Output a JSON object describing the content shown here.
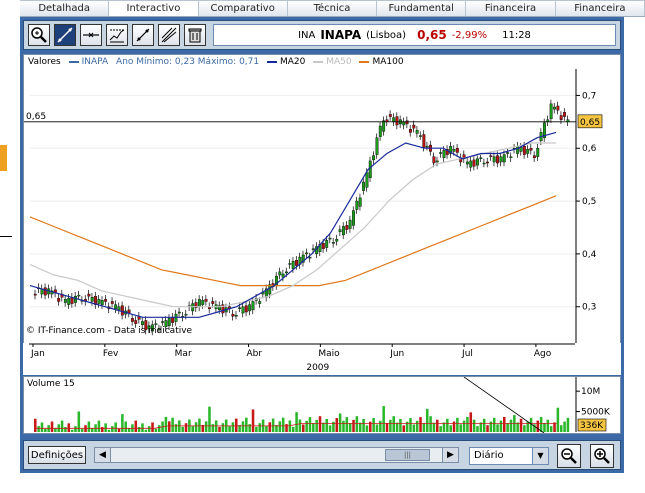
{
  "tabs": [
    "Detalhada",
    "Interactivo",
    "Comparativo",
    "Técnica",
    "Fundamental",
    "Financeira",
    "Financeira"
  ],
  "toolbar": {
    "tools": [
      "zoom-icon",
      "line-tool-icon",
      "horizontal-line-icon",
      "regression-icon",
      "trend-icon",
      "fibonacci-icon",
      "trash-icon"
    ]
  },
  "quote": {
    "exchange": "INA",
    "symbol": "INAPA",
    "market": "(Lisboa)",
    "price": "0,65",
    "change": "-2,99%",
    "time": "11:28"
  },
  "legend": {
    "valores": "Valores",
    "inapa": "INAPA",
    "range": "Ano Mínimo: 0,23 Máximo: 0,71",
    "ma20": "MA20",
    "ma50": "MA50",
    "ma100": "MA100"
  },
  "colors": {
    "ma20": "#1a2a9c",
    "ma50": "#c8c8c8",
    "ma100": "#e07818",
    "up": "#1c9b1c",
    "down": "#b81414",
    "volume_up": "#2ab82a",
    "volume_down": "#c81818",
    "highlight": "#f5c542"
  },
  "price_level_label": "0,65",
  "price_tag": "0,65",
  "copyright": "© IT-Finance.com - Data is indicative",
  "volume_label": "Volume 15",
  "volume_tag": "336K",
  "buttons": {
    "settings": "Definições",
    "period": "Diário"
  },
  "chart_data": [
    {
      "type": "candlestick",
      "title": "INAPA",
      "x_year": "2009",
      "x_ticks": [
        "Jan",
        "Fev",
        "Mar",
        "Abr",
        "Maio",
        "Jun",
        "Jul",
        "Ago"
      ],
      "y_ticks": [
        0.3,
        0.4,
        0.5,
        0.6,
        0.7
      ],
      "y_tick_labels": [
        "0,3",
        "0,4",
        "0,5",
        "0,6",
        "0,7"
      ],
      "ylim": [
        0.22,
        0.75
      ],
      "year_low": 0.23,
      "year_high": 0.71,
      "last": 0.65,
      "weekly_closes": [
        0.33,
        0.31,
        0.32,
        0.31,
        0.3,
        0.28,
        0.26,
        0.27,
        0.29,
        0.31,
        0.3,
        0.29,
        0.3,
        0.33,
        0.37,
        0.39,
        0.41,
        0.43,
        0.46,
        0.55,
        0.66,
        0.65,
        0.63,
        0.58,
        0.6,
        0.57,
        0.58,
        0.58,
        0.6,
        0.59,
        0.68,
        0.65
      ],
      "ma20": [
        0.34,
        0.33,
        0.32,
        0.31,
        0.3,
        0.29,
        0.28,
        0.28,
        0.28,
        0.28,
        0.29,
        0.3,
        0.32,
        0.34,
        0.37,
        0.4,
        0.44,
        0.5,
        0.56,
        0.59,
        0.61,
        0.6,
        0.6,
        0.58,
        0.59,
        0.59,
        0.6,
        0.62,
        0.63
      ],
      "ma50": [
        0.38,
        0.36,
        0.35,
        0.33,
        0.32,
        0.31,
        0.3,
        0.3,
        0.3,
        0.31,
        0.32,
        0.34,
        0.37,
        0.41,
        0.45,
        0.5,
        0.54,
        0.57,
        0.58,
        0.59,
        0.6,
        0.61,
        0.61
      ],
      "ma100": [
        0.47,
        0.45,
        0.43,
        0.41,
        0.39,
        0.37,
        0.36,
        0.35,
        0.34,
        0.34,
        0.34,
        0.34,
        0.35,
        0.37,
        0.39,
        0.41,
        0.43,
        0.45,
        0.47,
        0.49,
        0.51
      ]
    },
    {
      "type": "bar",
      "title": "Volume 15",
      "y_tick_labels": [
        "10M",
        "5000K"
      ],
      "ylim": [
        0,
        12000000
      ],
      "last_volume": "336K"
    }
  ]
}
